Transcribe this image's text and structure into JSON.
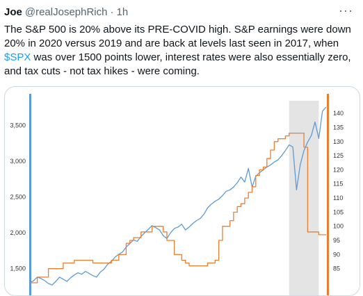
{
  "tweet": {
    "author_name": "Joe",
    "author_handle": "@realJosephRich",
    "separator": "·",
    "time": "1h",
    "more_icon": "more-horizontal-icon",
    "text_before_cashtag": "The S&P 500 is 20% above its PRE-COVID high. S&P earnings were down 20% in 2020 versus 2019 and are back at levels last seen in 2017, when ",
    "cashtag": "$SPX",
    "text_after_cashtag": " was over 1500 points lower, interest rates were also essentially zero, and tax cuts - not tax hikes - were coming."
  },
  "chart_data": {
    "type": "line",
    "left_axis": {
      "ticks": [
        "1,500",
        "2,000",
        "2,500",
        "3,000",
        "3,500"
      ],
      "ylim": [
        1300,
        3750
      ]
    },
    "right_axis": {
      "ticks": [
        "85",
        "90",
        "95",
        "100",
        "105",
        "110",
        "115",
        "120",
        "125",
        "130",
        "135",
        "140"
      ],
      "ylim": [
        80,
        142
      ]
    },
    "colors": {
      "spx": "#5b9bd5",
      "earnings": "#ed7d31",
      "recession_shade": "#d9d9d9",
      "left_axis_bar": "#5b9bd5",
      "right_axis_bar": "#ed7d31"
    },
    "series": [
      {
        "axis": "left",
        "values": [
          1300,
          1330,
          1380,
          1360,
          1330,
          1290,
          1270,
          1320,
          1380,
          1350,
          1320,
          1370,
          1410,
          1440,
          1420,
          1460,
          1430,
          1400,
          1380,
          1450,
          1490,
          1560,
          1600,
          1660,
          1700,
          1730,
          1800,
          1850,
          1900,
          1880,
          1950,
          2000,
          2050,
          2100,
          2070,
          2040,
          1960,
          1920,
          2000,
          2060,
          2080,
          2120,
          2040,
          2080,
          2130,
          2170,
          2200,
          2260,
          2350,
          2400,
          2440,
          2470,
          2520,
          2580,
          2600,
          2640,
          2700,
          2780,
          2710,
          2900,
          2640,
          2790,
          2840,
          2880,
          2920,
          2950,
          2990,
          3020,
          3080,
          3150,
          3230,
          3200,
          2600,
          2950,
          3150,
          3270,
          3360,
          3550,
          3320,
          3700,
          3760
        ]
      },
      {
        "axis": "right",
        "values": [
          80,
          80,
          82,
          82,
          82,
          85,
          85,
          85,
          85,
          87,
          87,
          87,
          88,
          88,
          88,
          88,
          88,
          87,
          87,
          87,
          87,
          87,
          88,
          88,
          90,
          90,
          94,
          95,
          96,
          96,
          98,
          98,
          98,
          100,
          100,
          100,
          98,
          95,
          95,
          90,
          90,
          88,
          87,
          86,
          86,
          86,
          86,
          86,
          87,
          87,
          88,
          95,
          100,
          100,
          102,
          105,
          107,
          108,
          110,
          112,
          114,
          118,
          120,
          121,
          124,
          127,
          130,
          131,
          131,
          132,
          133,
          133,
          133,
          133,
          128,
          98,
          98,
          98,
          97,
          97,
          97
        ]
      }
    ],
    "shaded_region": {
      "from_index": 70,
      "to_index": 78
    }
  }
}
